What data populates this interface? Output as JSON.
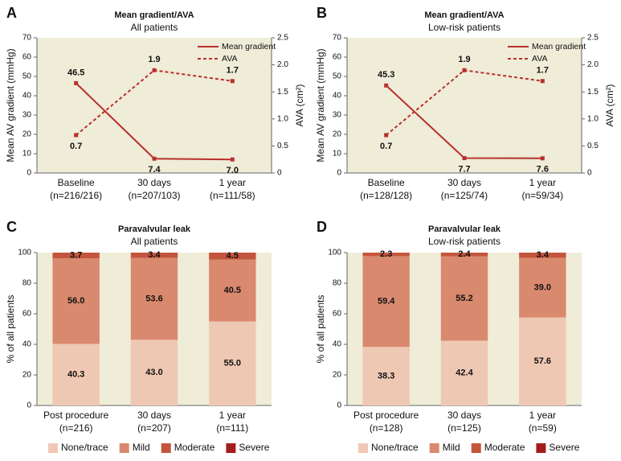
{
  "chart_data": [
    {
      "type": "line",
      "panel": "A",
      "title": "Mean gradient/AVA",
      "subtitle": "All patients",
      "categories": [
        "Baseline",
        "30 days",
        "1 year"
      ],
      "category_notes": [
        "(n=216/216)",
        "(n=207/103)",
        "(n=111/58)"
      ],
      "ylabel": "Mean AV gradient (mmHg)",
      "y2label": "AVA (cm²)",
      "ylim": [
        0,
        70
      ],
      "yticks": [
        0,
        10,
        20,
        30,
        40,
        50,
        60,
        70
      ],
      "y2lim": [
        0,
        2.5
      ],
      "y2ticks": [
        0,
        0.5,
        {
          "value": 1,
          "label": "1.0"
        },
        1.5,
        {
          "value": 2,
          "label": "2.0"
        },
        2.5
      ],
      "legend": "upper right",
      "series": [
        {
          "name": "Mean gradient",
          "color": "#b8312b",
          "values": [
            46.5,
            7.4,
            7.0
          ],
          "value_labels": [
            "46.5",
            "7.4",
            "7.0"
          ]
        },
        {
          "name": "AVA",
          "color": "#b8312b",
          "axis": "y2",
          "dashed": true,
          "values": [
            0.7,
            1.9,
            1.7
          ]
        }
      ]
    },
    {
      "type": "line",
      "panel": "B",
      "title": "Mean gradient/AVA",
      "subtitle": "Low-risk patients",
      "categories": [
        "Baseline",
        "30 days",
        "1 year"
      ],
      "category_notes": [
        "(n=128/128)",
        "(n=125/74)",
        "(n=59/34)"
      ],
      "ylabel": "Mean AV gradient (mmHg)",
      "y2label": "AVA (cm²)",
      "ylim": [
        0,
        70
      ],
      "yticks": [
        0,
        10,
        20,
        30,
        40,
        50,
        60,
        70
      ],
      "y2lim": [
        0,
        2.5
      ],
      "y2ticks": [
        0,
        0.5,
        {
          "value": 1,
          "label": "1.0"
        },
        1.5,
        {
          "value": 2,
          "label": "2.0"
        },
        2.5
      ],
      "legend": "upper right",
      "series": [
        {
          "name": "Mean gradient",
          "color": "#b8312b",
          "values": [
            45.3,
            7.7,
            7.6
          ]
        },
        {
          "name": "AVA",
          "color": "#b8312b",
          "axis": "y2",
          "dashed": true,
          "values": [
            0.7,
            1.9,
            1.7
          ]
        }
      ]
    },
    {
      "type": "stacked_bar",
      "panel": "C",
      "title": "Paravalvular leak",
      "subtitle": "All patients",
      "categories": [
        "Post procedure",
        "30 days",
        "1 year"
      ],
      "category_notes": [
        "(n=216)",
        "(n=207)",
        "(n=111)"
      ],
      "ylabel": "% of all patients",
      "ylim": [
        0,
        100
      ],
      "yticks": [
        0,
        20,
        40,
        60,
        80,
        100
      ],
      "legend": "bottom",
      "series": [
        {
          "name": "None/trace",
          "color": "#efc8b4",
          "values": [
            40.3,
            43.0,
            55.0
          ],
          "value_labels": [
            "40.3",
            "43.0",
            "55.0"
          ]
        },
        {
          "name": "Mild",
          "color": "#d9896e",
          "values": [
            56.0,
            53.6,
            40.5
          ],
          "value_labels": [
            "56.0",
            "53.6",
            "40.5"
          ]
        },
        {
          "name": "Moderate",
          "color": "#c4553d",
          "values": [
            3.7,
            3.4,
            4.5
          ]
        },
        {
          "name": "Severe",
          "color": "#a51c1c",
          "values": [
            0,
            0,
            0
          ]
        }
      ]
    },
    {
      "type": "stacked_bar",
      "panel": "D",
      "title": "Paravalvular leak",
      "subtitle": "Low-risk patients",
      "categories": [
        "Post procedure",
        "30 days",
        "1 year"
      ],
      "category_notes": [
        "(n=128)",
        "(n=125)",
        "(n=59)"
      ],
      "ylabel": "% of all patients",
      "ylim": [
        0,
        100
      ],
      "yticks": [
        0,
        20,
        40,
        60,
        80,
        100
      ],
      "legend": "bottom",
      "series": [
        {
          "name": "None/trace",
          "color": "#efc8b4",
          "values": [
            38.3,
            42.4,
            57.6
          ]
        },
        {
          "name": "Mild",
          "color": "#d9896e",
          "values": [
            59.4,
            55.2,
            39.0
          ],
          "value_labels": [
            "59.4",
            "55.2",
            "39.0"
          ]
        },
        {
          "name": "Moderate",
          "color": "#c4553d",
          "values": [
            2.3,
            2.4,
            3.4
          ]
        },
        {
          "name": "Severe",
          "color": "#a51c1c",
          "values": [
            0,
            0,
            0
          ]
        }
      ]
    }
  ]
}
